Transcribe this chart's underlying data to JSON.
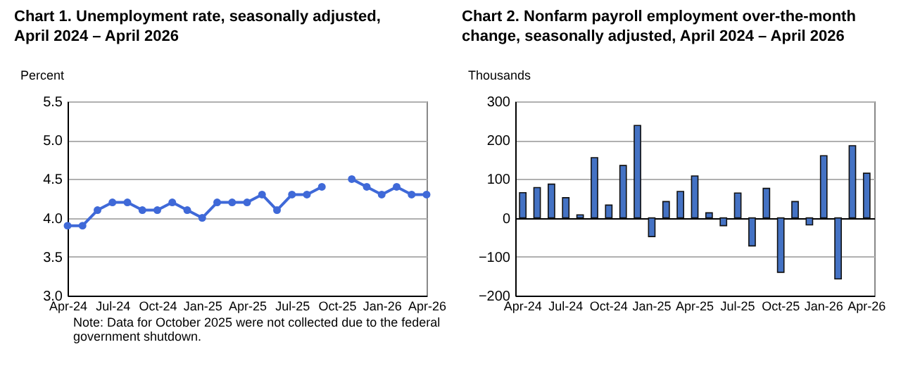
{
  "chart_data": [
    {
      "type": "line",
      "title": "Chart 1. Unemployment rate, seasonally adjusted, April 2024 – April 2026",
      "ylabel": "Percent",
      "categories": [
        "Apr-24",
        null,
        null,
        "Jul-24",
        null,
        null,
        "Oct-24",
        null,
        null,
        "Jan-25",
        null,
        null,
        "Apr-25",
        null,
        null,
        "Jul-25",
        null,
        null,
        "Oct-25",
        null,
        null,
        "Jan-26",
        null,
        null,
        "Apr-26"
      ],
      "series": [
        {
          "color": "#3f69d8",
          "values": [
            3.9,
            3.9,
            4.1,
            4.2,
            4.2,
            4.1,
            4.1,
            4.2,
            4.1,
            4.0,
            4.2,
            4.2,
            4.2,
            4.3,
            4.1,
            4.3,
            4.3,
            4.4,
            null,
            4.5,
            4.4,
            4.3,
            4.4,
            4.3,
            4.3
          ]
        }
      ],
      "ylim": [
        3,
        5.5
      ],
      "yticks": [
        {
          "value": 3,
          "label": "3.0"
        },
        3.5,
        {
          "value": 4,
          "label": "4.0"
        },
        4.5,
        {
          "value": 5,
          "label": "5.0"
        },
        5.5
      ],
      "grid": "y",
      "marker": "circle",
      "legend": false,
      "annotations": [
        "Note: Data for October 2025 were not collected due to the federal government shutdown."
      ]
    },
    {
      "type": "bar",
      "title": "Chart 2. Nonfarm payroll employment over-the-month change, seasonally adjusted, April 2024 – April 2026",
      "ylabel": "Thousands",
      "categories": [
        "Apr-24",
        null,
        null,
        "Jul-24",
        null,
        null,
        "Oct-24",
        null,
        null,
        "Jan-25",
        null,
        null,
        "Apr-25",
        null,
        null,
        "Jul-25",
        null,
        null,
        "Oct-25",
        null,
        null,
        "Jan-26",
        null,
        null,
        "Apr-26"
      ],
      "series": [
        {
          "color": "#4472c4",
          "values": [
            65,
            78,
            87,
            52,
            8,
            155,
            33,
            135,
            238,
            -48,
            42,
            68,
            108,
            13,
            -20,
            64,
            -72,
            76,
            -140,
            42,
            -18,
            160,
            -157,
            186,
            115
          ]
        }
      ],
      "ylim": [
        -200,
        300
      ],
      "yticks": [
        -200,
        -100,
        0,
        100,
        200,
        300
      ],
      "grid": "y",
      "legend": false
    }
  ]
}
